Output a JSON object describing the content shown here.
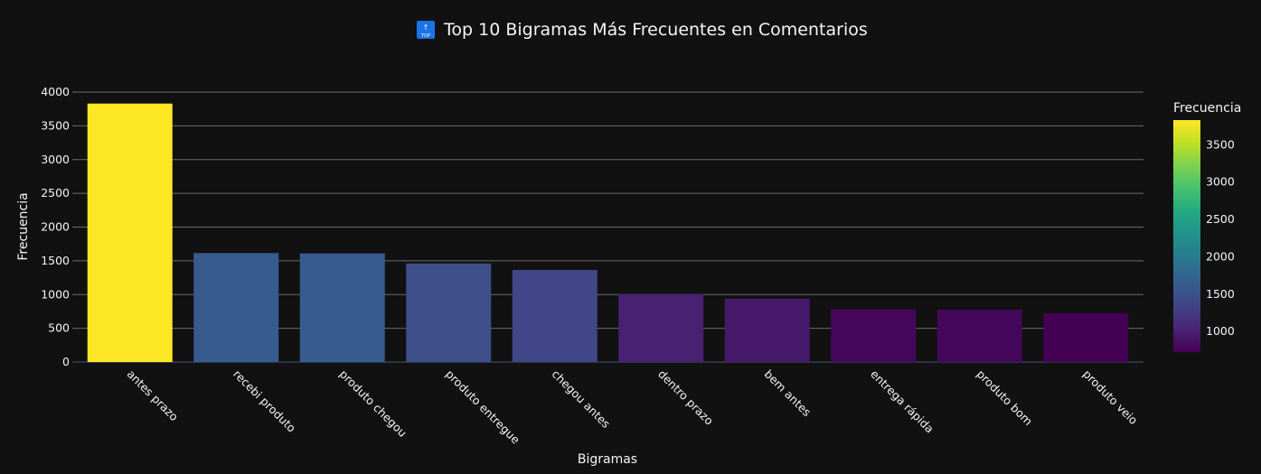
{
  "chart_data": {
    "type": "bar",
    "title": "🔝 Top 10 Bigramas Más Frecuentes en Comentarios",
    "title_icon": "top-arrow-icon",
    "title_text": "Top 10 Bigramas Más Frecuentes en Comentarios",
    "xlabel": "Bigramas",
    "ylabel": "Frecuencia",
    "categories": [
      "antes prazo",
      "recebi produto",
      "produto chegou",
      "produto entregue",
      "chegou antes",
      "dentro prazo",
      "bem antes",
      "entrega rápida",
      "produto bom",
      "produto veio"
    ],
    "values": [
      3830,
      1615,
      1610,
      1460,
      1365,
      1005,
      940,
      780,
      775,
      725
    ],
    "ylim": [
      0,
      4000
    ],
    "yticks": [
      0,
      500,
      1000,
      1500,
      2000,
      2500,
      3000,
      3500,
      4000
    ],
    "grid": true,
    "colorscale": "viridis",
    "colorbar": {
      "title": "Frecuencia",
      "range": [
        725,
        3830
      ],
      "ticks": [
        1000,
        1500,
        2000,
        2500,
        3000,
        3500
      ]
    }
  },
  "colors": {
    "background": "#111111",
    "grid": "#6b6b6b",
    "text": "#f2f5fa",
    "title_icon_bg": "#1a73e8"
  }
}
